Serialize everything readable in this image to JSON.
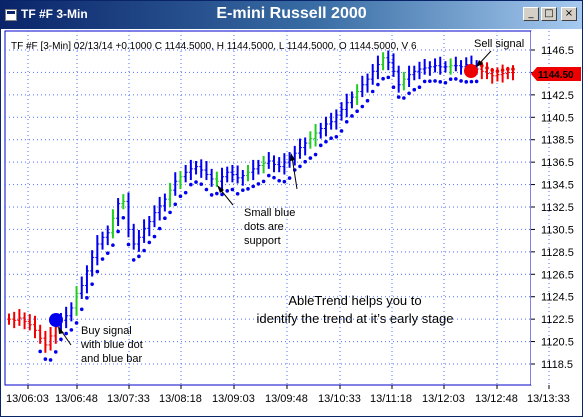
{
  "window": {
    "symbol_title": "TF #F 3-Min",
    "title": "E-mini Russell 2000",
    "minimize_glyph": "_",
    "maximize_glyph": "□",
    "close_glyph": "×"
  },
  "chart_data": {
    "type": "bar",
    "info_line": "TF #F [3-Min] 02/13/14  +0.1000 C 1144.5000, H 1144.5000, L 1144.5000, O 1144.5000, V 6",
    "x_tick_labels": [
      "13/06:03",
      "13/06:48",
      "13/07:33",
      "13/08:18",
      "13/09:03",
      "13/09:48",
      "13/10:33",
      "13/11:18",
      "13/12:03",
      "13/12:48",
      "13/13:33"
    ],
    "y_tick_labels": [
      "1146.5",
      "1144.5",
      "1142.5",
      "1140.5",
      "1138.5",
      "1136.5",
      "1134.5",
      "1132.5",
      "1130.5",
      "1128.5",
      "1126.5",
      "1124.5",
      "1122.5",
      "1120.5",
      "1118.5"
    ],
    "ylim": [
      1117.5,
      1147.5
    ],
    "last_price_label": "1144.50",
    "annotations": {
      "buy_signal": [
        "Buy signal",
        "with blue dot",
        "and blue bar"
      ],
      "sell_signal": "Sell signal",
      "support": [
        "Small blue",
        "dots are",
        "support"
      ],
      "abletrend": [
        "AbleTrend helps you to",
        "identify the trend at it’s early stage"
      ]
    },
    "colors": {
      "up_bar": "#0000ee",
      "neutral_bar": "#22cc22",
      "down_bar": "#ee0000",
      "signal_dot": "#0000ee",
      "sell_dot": "#ee0000",
      "grid": "#4f6fff",
      "price_tag": "#ee0000"
    }
  }
}
